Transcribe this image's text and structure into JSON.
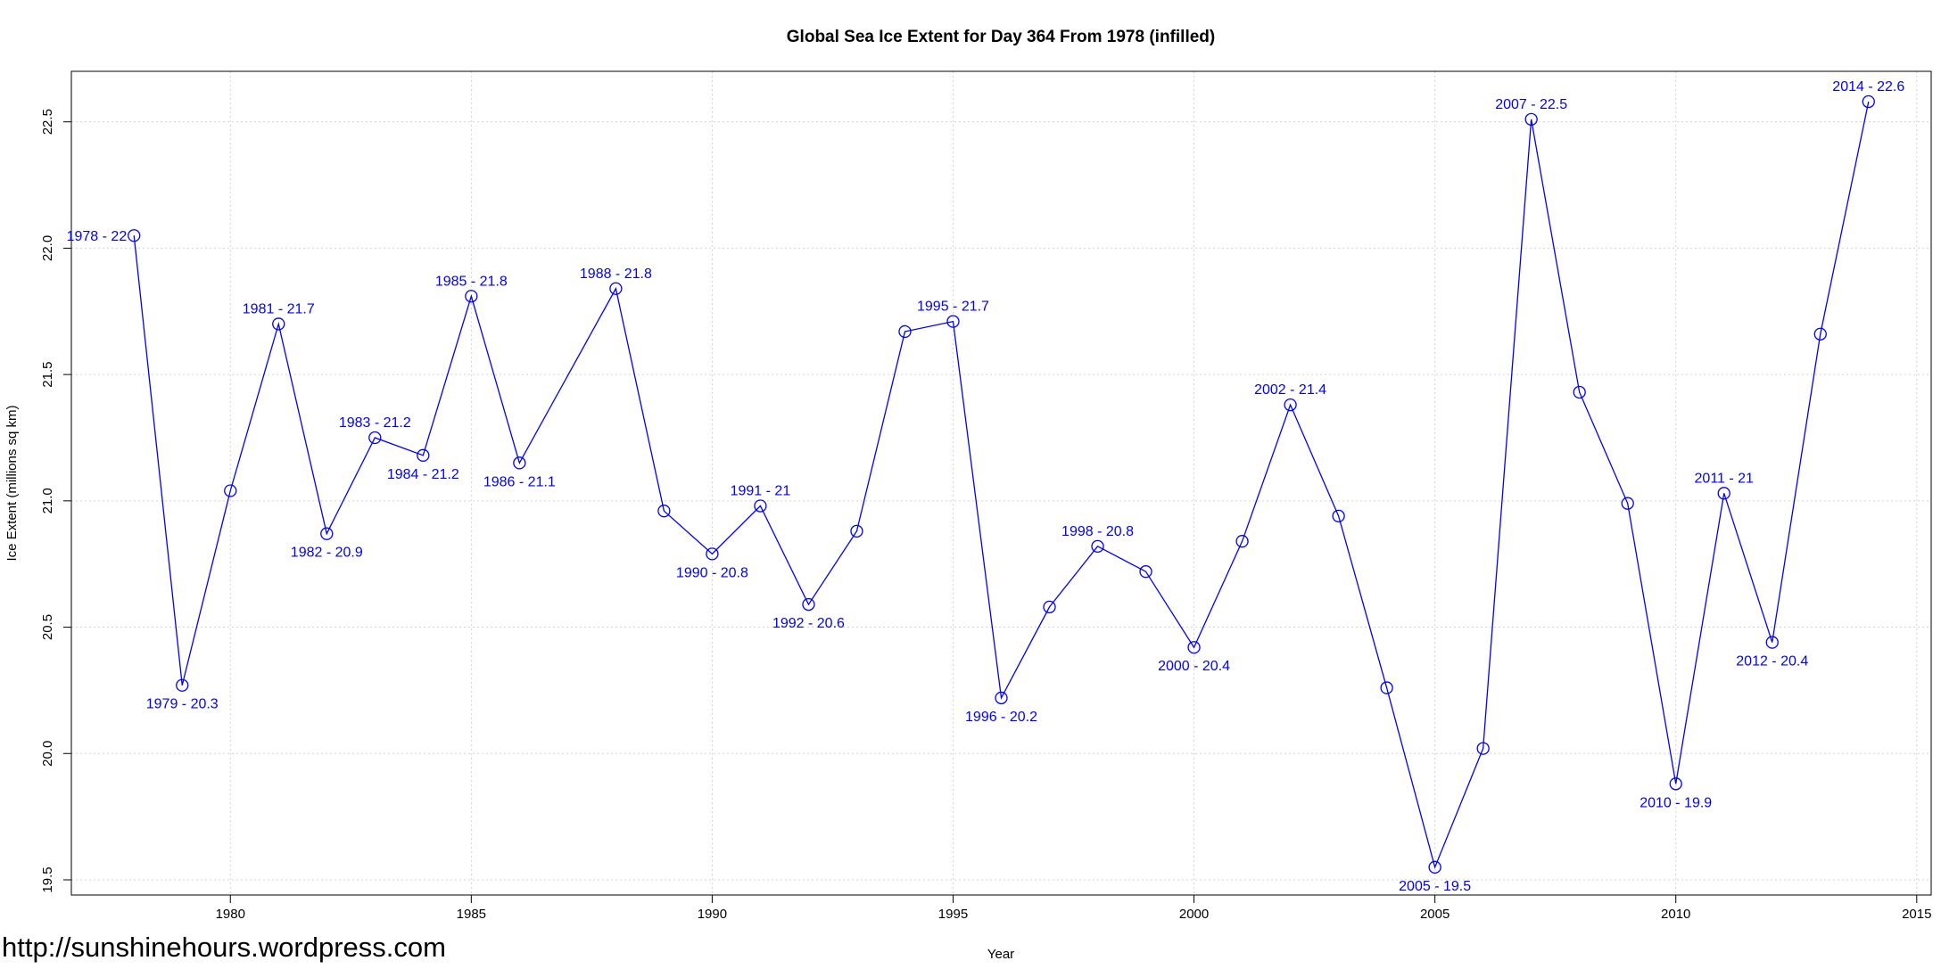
{
  "watermark": "http://sunshinehours.wordpress.com",
  "chart_data": {
    "type": "line",
    "title": "Global Sea Ice Extent for Day 364 From 1978 (infilled)",
    "xlabel": "Year",
    "ylabel": "Ice Extent (millions sq km)",
    "xlim": [
      1976.7,
      2015.3
    ],
    "ylim": [
      19.44,
      22.7
    ],
    "x_ticks": [
      1980,
      1985,
      1990,
      1995,
      2000,
      2005,
      2010,
      2015
    ],
    "y_ticks": [
      19.5,
      20.0,
      20.5,
      21.0,
      21.5,
      22.0,
      22.5
    ],
    "grid": true,
    "color": "#0000ff",
    "series": [
      {
        "x": [
          1978,
          1979,
          1980,
          1981,
          1982,
          1983,
          1984,
          1985,
          1986,
          1988,
          1989,
          1990,
          1991,
          1992,
          1993,
          1994,
          1995,
          1996,
          1997,
          1998,
          1999,
          2000,
          2001,
          2002,
          2003,
          2004,
          2005,
          2006,
          2007,
          2008,
          2009,
          2010,
          2011,
          2012,
          2013,
          2014
        ],
        "y": [
          22.05,
          20.27,
          21.04,
          21.7,
          20.87,
          21.25,
          21.18,
          21.81,
          21.15,
          21.84,
          20.96,
          20.79,
          20.98,
          20.59,
          20.88,
          21.67,
          21.71,
          20.22,
          20.58,
          20.82,
          20.72,
          20.42,
          20.84,
          21.38,
          20.94,
          20.26,
          19.55,
          20.02,
          22.51,
          21.43,
          20.99,
          19.88,
          21.03,
          20.44,
          21.66,
          22.58
        ]
      }
    ],
    "annotations": [
      {
        "x": 1978,
        "y": 22.05,
        "text": "1978 - 22",
        "pos": "left"
      },
      {
        "x": 1979,
        "y": 20.27,
        "text": "1979 - 20.3",
        "pos": "below"
      },
      {
        "x": 1981,
        "y": 21.7,
        "text": "1981 - 21.7",
        "pos": "above"
      },
      {
        "x": 1982,
        "y": 20.87,
        "text": "1982 - 20.9",
        "pos": "below"
      },
      {
        "x": 1983,
        "y": 21.25,
        "text": "1983 - 21.2",
        "pos": "above"
      },
      {
        "x": 1984,
        "y": 21.18,
        "text": "1984 - 21.2",
        "pos": "below"
      },
      {
        "x": 1985,
        "y": 21.81,
        "text": "1985 - 21.8",
        "pos": "above"
      },
      {
        "x": 1986,
        "y": 21.15,
        "text": "1986 - 21.1",
        "pos": "below"
      },
      {
        "x": 1988,
        "y": 21.84,
        "text": "1988 - 21.8",
        "pos": "above"
      },
      {
        "x": 1990,
        "y": 20.79,
        "text": "1990 - 20.8",
        "pos": "below"
      },
      {
        "x": 1991,
        "y": 20.98,
        "text": "1991 - 21",
        "pos": "above"
      },
      {
        "x": 1992,
        "y": 20.59,
        "text": "1992 - 20.6",
        "pos": "below"
      },
      {
        "x": 1995,
        "y": 21.71,
        "text": "1995 - 21.7",
        "pos": "above"
      },
      {
        "x": 1996,
        "y": 20.22,
        "text": "1996 - 20.2",
        "pos": "below"
      },
      {
        "x": 1998,
        "y": 20.82,
        "text": "1998 - 20.8",
        "pos": "above"
      },
      {
        "x": 2000,
        "y": 20.42,
        "text": "2000 - 20.4",
        "pos": "below"
      },
      {
        "x": 2002,
        "y": 21.38,
        "text": "2002 - 21.4",
        "pos": "above"
      },
      {
        "x": 2005,
        "y": 19.55,
        "text": "2005 - 19.5",
        "pos": "below"
      },
      {
        "x": 2007,
        "y": 22.51,
        "text": "2007 - 22.5",
        "pos": "above"
      },
      {
        "x": 2010,
        "y": 19.88,
        "text": "2010 - 19.9",
        "pos": "below"
      },
      {
        "x": 2011,
        "y": 21.03,
        "text": "2011 - 21",
        "pos": "above"
      },
      {
        "x": 2012,
        "y": 20.44,
        "text": "2012 - 20.4",
        "pos": "below"
      },
      {
        "x": 2014,
        "y": 22.58,
        "text": "2014 - 22.6",
        "pos": "above"
      }
    ]
  }
}
